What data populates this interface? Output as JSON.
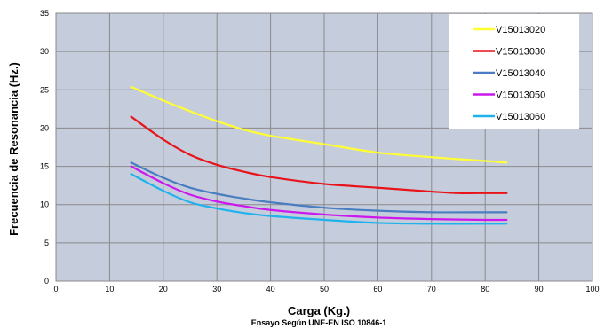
{
  "chart_data": {
    "type": "line",
    "title": "",
    "xlabel": "Carga (Kg.)",
    "ylabel": "Frecuencia de Resonancia (Hz.)",
    "subtitle": "Ensayo Según UNE-EN ISO 10846-1",
    "xlim": [
      0,
      100
    ],
    "ylim": [
      0,
      35
    ],
    "xticks": [
      0,
      10,
      20,
      30,
      40,
      50,
      60,
      70,
      80,
      90,
      100
    ],
    "yticks": [
      0,
      5,
      10,
      15,
      20,
      25,
      30,
      35
    ],
    "grid": true,
    "plot_background": "#c5ccdc",
    "legend_position": "top-right",
    "series": [
      {
        "name": "V15013020",
        "color": "#ffff33",
        "x": [
          14,
          20,
          25,
          30,
          35,
          40,
          50,
          60,
          70,
          80,
          84
        ],
        "y": [
          25.4,
          23.6,
          22.2,
          20.9,
          19.8,
          19.0,
          17.9,
          16.8,
          16.2,
          15.7,
          15.5
        ]
      },
      {
        "name": "V15013030",
        "color": "#e8141a",
        "x": [
          14,
          20,
          25,
          30,
          35,
          40,
          50,
          60,
          70,
          75,
          80,
          84
        ],
        "y": [
          21.5,
          18.5,
          16.5,
          15.2,
          14.3,
          13.6,
          12.7,
          12.2,
          11.7,
          11.5,
          11.5,
          11.5
        ]
      },
      {
        "name": "V15013040",
        "color": "#4a7ec0",
        "x": [
          14,
          20,
          25,
          30,
          35,
          40,
          50,
          60,
          70,
          80,
          84
        ],
        "y": [
          15.5,
          13.5,
          12.2,
          11.4,
          10.8,
          10.3,
          9.6,
          9.2,
          9.0,
          9.0,
          9.0
        ]
      },
      {
        "name": "V15013050",
        "color": "#cc18ee",
        "x": [
          14,
          20,
          25,
          30,
          35,
          40,
          50,
          60,
          70,
          80,
          84
        ],
        "y": [
          15.0,
          12.8,
          11.3,
          10.4,
          9.8,
          9.3,
          8.7,
          8.3,
          8.1,
          8.0,
          8.0
        ]
      },
      {
        "name": "V15013060",
        "color": "#1fb2ec",
        "x": [
          14,
          20,
          25,
          30,
          35,
          40,
          50,
          60,
          70,
          80,
          84
        ],
        "y": [
          14.0,
          11.8,
          10.3,
          9.5,
          8.9,
          8.5,
          8.0,
          7.6,
          7.5,
          7.5,
          7.5
        ]
      }
    ]
  }
}
